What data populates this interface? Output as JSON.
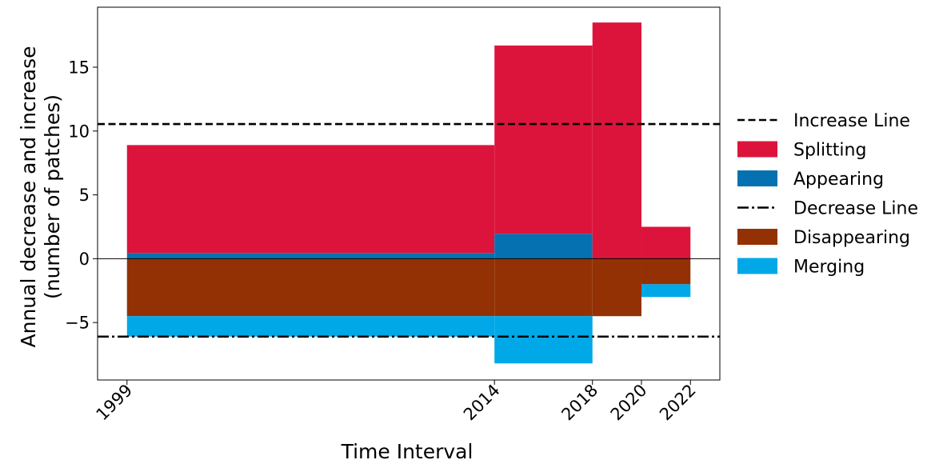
{
  "chart_data": {
    "type": "bar",
    "title": "",
    "xlabel": "Time Interval",
    "ylabel_lines": [
      "Annual decrease and increase",
      "(number of patches)"
    ],
    "x_ticks": [
      1999,
      2014,
      2018,
      2020,
      2022
    ],
    "x_tick_labels": [
      "1999",
      "2014",
      "2018",
      "2020",
      "2022"
    ],
    "xlim": [
      1997.8,
      2023.2
    ],
    "ylim": [
      -9.5,
      19.7
    ],
    "y_ticks": [
      -5,
      0,
      5,
      10,
      15
    ],
    "y_tick_labels": [
      "−5",
      "0",
      "5",
      "10",
      "15"
    ],
    "intervals": [
      {
        "start": 1999,
        "end": 2014
      },
      {
        "start": 2014,
        "end": 2018
      },
      {
        "start": 2018,
        "end": 2020
      },
      {
        "start": 2020,
        "end": 2022
      }
    ],
    "series": [
      {
        "name": "Appearing",
        "sign": "positive",
        "color": "#0571b0",
        "values": [
          0.45,
          1.95,
          0,
          0
        ]
      },
      {
        "name": "Splitting",
        "sign": "positive",
        "color": "#dc143c",
        "values": [
          8.45,
          14.75,
          18.5,
          2.5
        ]
      },
      {
        "name": "Disappearing",
        "sign": "negative",
        "color": "#943104",
        "values": [
          -4.5,
          -4.5,
          -4.5,
          -2.0
        ]
      },
      {
        "name": "Merging",
        "sign": "negative",
        "color": "#00a8e8",
        "values": [
          -1.6,
          -3.7,
          0,
          -1.0
        ]
      }
    ],
    "reference_lines": [
      {
        "name": "Increase Line",
        "value": 10.55,
        "style": "dashed",
        "color": "#000000"
      },
      {
        "name": "Decrease Line",
        "value": -6.1,
        "style": "dashdot",
        "color": "#000000"
      }
    ],
    "legend": {
      "placement": "outside-right",
      "entries": [
        {
          "label": "Increase Line",
          "kind": "dashed-line",
          "color": "#000000"
        },
        {
          "label": "Splitting",
          "kind": "patch",
          "color": "#dc143c"
        },
        {
          "label": "Appearing",
          "kind": "patch",
          "color": "#0571b0"
        },
        {
          "label": "Decrease Line",
          "kind": "dashdot-line",
          "color": "#000000"
        },
        {
          "label": "Disappearing",
          "kind": "patch",
          "color": "#943104"
        },
        {
          "label": "Merging",
          "kind": "patch",
          "color": "#00a8e8"
        }
      ]
    },
    "grid": false
  }
}
